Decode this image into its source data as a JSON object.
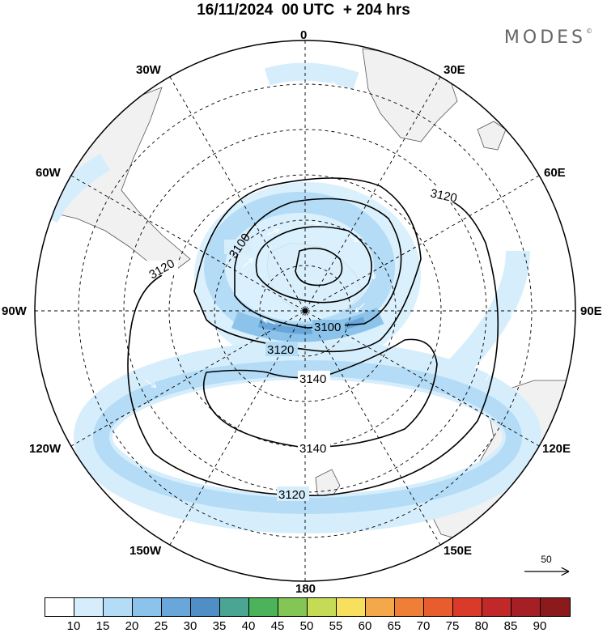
{
  "title": "16/11/2024  00 UTC  + 204 hrs",
  "brand": "MODES",
  "brand_mark": "©",
  "longitude_labels": {
    "n0": "0",
    "n30E": "30E",
    "n60E": "60E",
    "n90E": "90E",
    "n120E": "120E",
    "n150E": "150E",
    "n180": "180",
    "n150W": "150W",
    "n120W": "120W",
    "n90W": "90W",
    "n60W": "60W",
    "n30W": "30W"
  },
  "contour_labels": {
    "c3100a": "3100",
    "c3100b": "3100",
    "c3120a": "3120",
    "c3120b": "3120",
    "c3120c": "3120",
    "c3120d": "3120",
    "c3140a": "3140",
    "c3140b": "3140"
  },
  "reference_vector": "50",
  "colorbar": {
    "colors": [
      "#ffffff",
      "#d6eefc",
      "#b4dcf6",
      "#8cc3ea",
      "#69a7da",
      "#4f8fc6",
      "#4aa592",
      "#4db35a",
      "#83c656",
      "#c5db55",
      "#f6e05e",
      "#f5a84a",
      "#ef7e37",
      "#e85d2e",
      "#d93a2a",
      "#c0282a",
      "#a51f24",
      "#8b1a1c"
    ],
    "ticks": [
      "10",
      "15",
      "20",
      "25",
      "30",
      "35",
      "40",
      "45",
      "50",
      "55",
      "60",
      "65",
      "70",
      "75",
      "80",
      "85",
      "90"
    ]
  }
}
